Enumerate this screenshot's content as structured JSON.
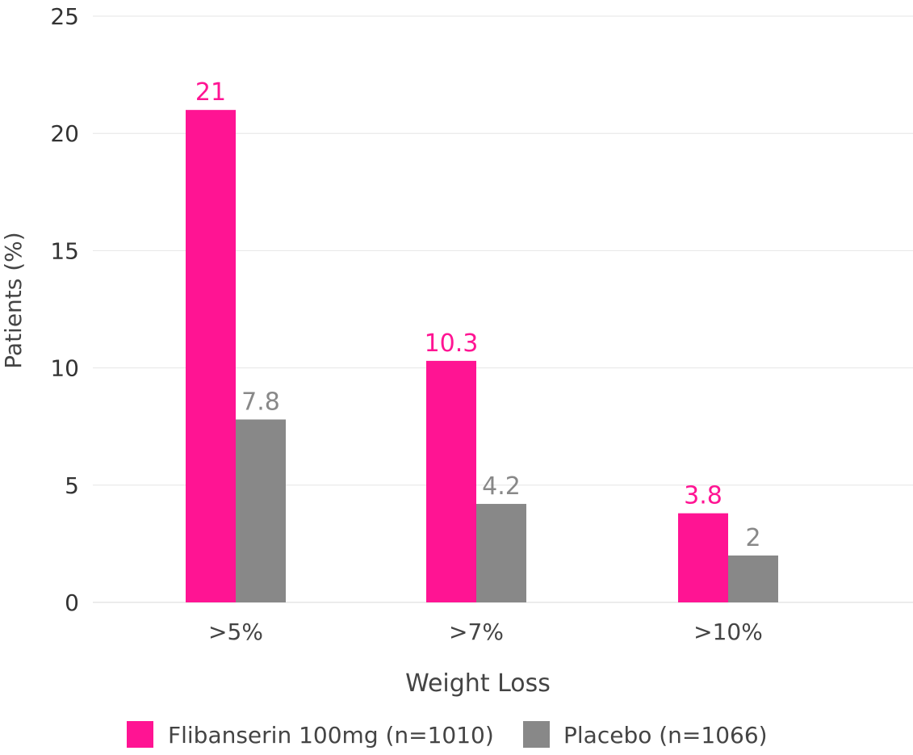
{
  "chart_data": {
    "type": "bar",
    "title": "",
    "xlabel": "Weight Loss",
    "ylabel": "Patients (%)",
    "categories": [
      ">5%",
      ">7%",
      ">10%"
    ],
    "ylim": [
      0,
      25
    ],
    "yticks": [
      0,
      5,
      10,
      15,
      20,
      25
    ],
    "grid": true,
    "legend_position": "bottom",
    "series": [
      {
        "name": "Flibanserin 100mg (n=1010)",
        "color": "#ff1493",
        "values": [
          21,
          10.3,
          3.8
        ],
        "labels": [
          "21",
          "10.3",
          "3.8"
        ]
      },
      {
        "name": "Placebo (n=1066)",
        "color": "#888888",
        "values": [
          7.8,
          4.2,
          2
        ],
        "labels": [
          "7.8",
          "4.2",
          "2"
        ]
      }
    ]
  }
}
